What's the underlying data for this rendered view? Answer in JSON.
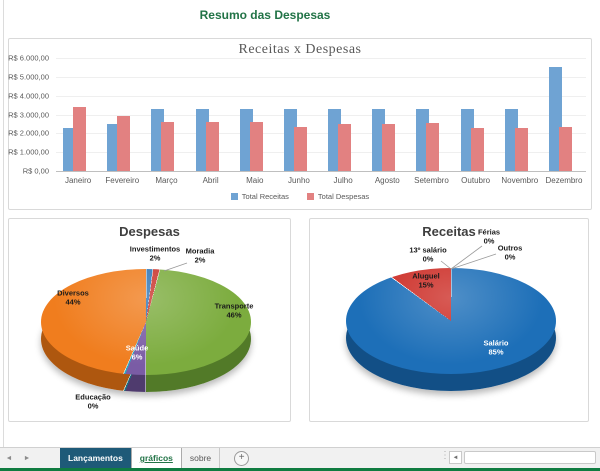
{
  "header": {
    "title": "Resumo das Despesas"
  },
  "chart_data": [
    {
      "type": "bar",
      "title": "Receitas x Despesas",
      "categories": [
        "Janeiro",
        "Fevereiro",
        "Março",
        "Abril",
        "Maio",
        "Junho",
        "Julho",
        "Agosto",
        "Setembro",
        "Outubro",
        "Novembro",
        "Dezembro"
      ],
      "series": [
        {
          "name": "Total Receitas",
          "values": [
            2300,
            2500,
            3300,
            3300,
            3300,
            3300,
            3300,
            3300,
            3300,
            3300,
            3300,
            5500
          ]
        },
        {
          "name": "Total Despesas",
          "values": [
            3400,
            2900,
            2600,
            2600,
            2600,
            2350,
            2500,
            2500,
            2550,
            2300,
            2300,
            2350
          ]
        }
      ],
      "colors": [
        "#6FA3D3",
        "#E28181"
      ],
      "ylim": [
        0,
        6000
      ],
      "y_tick_labels": [
        "R$ 6.000,00",
        "R$ 5.000,00",
        "R$ 4.000,00",
        "R$ 3.000,00",
        "R$ 2.000,00",
        "R$ 1.000,00",
        "R$ 0,00"
      ],
      "xlabel": "",
      "ylabel": "",
      "grid": true,
      "legend_position": "bottom"
    },
    {
      "type": "pie",
      "title": "Despesas",
      "labels": [
        "Investimentos",
        "Moradia",
        "Transporte",
        "Saúde",
        "Educação",
        "Diversos"
      ],
      "values": [
        2,
        2,
        46,
        6,
        0,
        44
      ],
      "pct_labels": [
        "2%",
        "2%",
        "46%",
        "6%",
        "0%",
        "44%"
      ],
      "colors": [
        "#2E75B6",
        "#C9342C",
        "#7CAC3E",
        "#7A5CA5",
        "#2AA9C0",
        "#F07D1E"
      ],
      "dark_colors": [
        "#1C4C78",
        "#88201B",
        "#527A28",
        "#4F3B6E",
        "#19707F",
        "#AE570F"
      ],
      "sweep_deg": [
        7.2,
        7.2,
        165.6,
        21.6,
        1.6,
        156.8
      ]
    },
    {
      "type": "pie",
      "title": "Receitas",
      "labels": [
        "Salário",
        "Aluguel",
        "13º salário",
        "Férias",
        "Outros"
      ],
      "values": [
        85,
        15,
        0,
        0,
        0
      ],
      "pct_labels": [
        "85%",
        "15%",
        "0%",
        "0%",
        "0%"
      ],
      "colors": [
        "#1D6FB8",
        "#CC2D26",
        "#9E9E9E",
        "#9E9E9E",
        "#9E9E9E"
      ],
      "dark_colors": [
        "#124F86",
        "#8C1D18",
        "#777777",
        "#777777",
        "#777777"
      ],
      "sweep_deg": [
        306,
        54,
        0,
        0,
        0
      ]
    }
  ],
  "sheet_bar": {
    "tabs": [
      {
        "label": "Lançamentos",
        "active": false
      },
      {
        "label": "gráficos",
        "active": true
      },
      {
        "label": "sobre",
        "active": false
      }
    ]
  },
  "icons": {
    "nav_left": "◄",
    "nav_right": "►",
    "scroll_left": "◄",
    "add_sheet": "+",
    "grip": "⋮"
  },
  "accent_colors": {
    "title_green": "#217346",
    "bottom_line_green": "#107C41",
    "active_tab_text": "#217346",
    "colored_tab_bg": "#1E5A78"
  }
}
